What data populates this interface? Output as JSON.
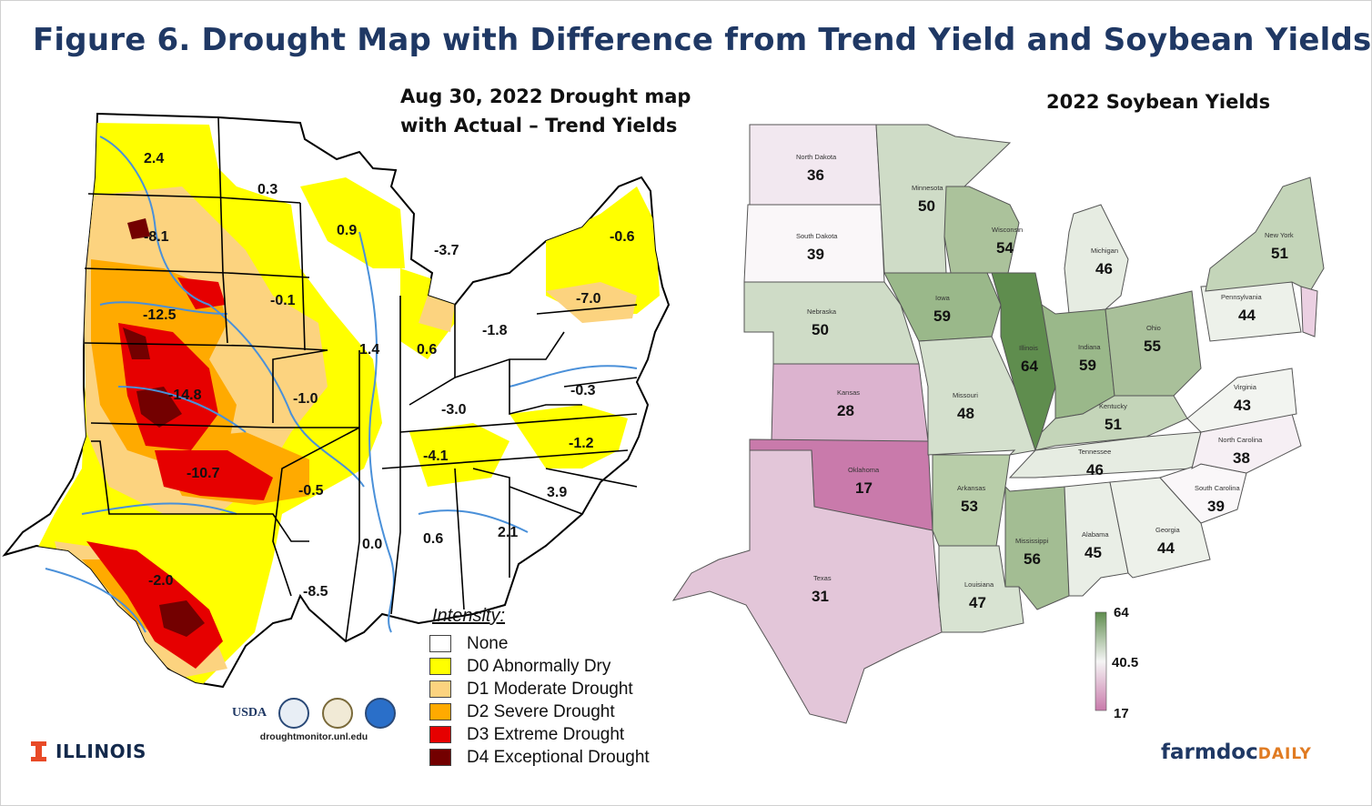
{
  "title": "Figure 6. Drought Map with Difference from Trend Yield and Soybean Yields",
  "left_map": {
    "heading_line1": "Aug 30, 2022 Drought map",
    "heading_line2": "with Actual – Trend Yields",
    "labels": [
      "2.4",
      "0.3",
      "-8.1",
      "0.9",
      "-3.7",
      "-0.6",
      "-12.5",
      "-0.1",
      "-7.0",
      "-1.8",
      "1.4",
      "0.6",
      "-14.8",
      "-1.0",
      "-0.3",
      "-3.0",
      "-1.2",
      "-4.1",
      "-10.7",
      "-0.5",
      "3.9",
      "2.1",
      "0.0",
      "0.6",
      "-2.0",
      "-8.5"
    ],
    "legend": {
      "title": "Intensity:",
      "items": [
        {
          "label": "None",
          "color": "#ffffff"
        },
        {
          "label": "D0 Abnormally Dry",
          "color": "#ffff00"
        },
        {
          "label": "D1 Moderate Drought",
          "color": "#fcd37f"
        },
        {
          "label": "D2 Severe Drought",
          "color": "#ffaa00"
        },
        {
          "label": "D3 Extreme Drought",
          "color": "#e60000"
        },
        {
          "label": "D4 Exceptional Drought",
          "color": "#730000"
        }
      ]
    },
    "sponsors": {
      "usda": "USDA",
      "url": "droughtmonitor.unl.edu",
      "logos": [
        "ndmc-logo",
        "doc-seal-logo",
        "noaa-logo"
      ]
    }
  },
  "right_map": {
    "heading": "2022 Soybean Yields",
    "states": [
      {
        "name": "North Dakota",
        "value": "36"
      },
      {
        "name": "Minnesota",
        "value": "50"
      },
      {
        "name": "South Dakota",
        "value": "39"
      },
      {
        "name": "Wisconsin",
        "value": "54"
      },
      {
        "name": "Michigan",
        "value": "46"
      },
      {
        "name": "New York",
        "value": "51"
      },
      {
        "name": "Iowa",
        "value": "59"
      },
      {
        "name": "Nebraska",
        "value": "50"
      },
      {
        "name": "Pennsylvania",
        "value": "44"
      },
      {
        "name": "Illinois",
        "value": "64"
      },
      {
        "name": "Indiana",
        "value": "59"
      },
      {
        "name": "Ohio",
        "value": "55"
      },
      {
        "name": "Kansas",
        "value": "28"
      },
      {
        "name": "Missouri",
        "value": "48"
      },
      {
        "name": "Kentucky",
        "value": "51"
      },
      {
        "name": "Virginia",
        "value": "43"
      },
      {
        "name": "North Carolina",
        "value": "38"
      },
      {
        "name": "Tennessee",
        "value": "46"
      },
      {
        "name": "Oklahoma",
        "value": "17"
      },
      {
        "name": "Arkansas",
        "value": "53"
      },
      {
        "name": "South Carolina",
        "value": "39"
      },
      {
        "name": "Mississippi",
        "value": "56"
      },
      {
        "name": "Alabama",
        "value": "45"
      },
      {
        "name": "Georgia",
        "value": "44"
      },
      {
        "name": "Texas",
        "value": "31"
      },
      {
        "name": "Louisiana",
        "value": "47"
      }
    ],
    "scale": {
      "max": "64",
      "mid": "40.5",
      "min": "17",
      "color_max": "#5f8d4e",
      "color_mid": "#f5f5f5",
      "color_min": "#c97aab"
    }
  },
  "logos": {
    "illinois": "ILLINOIS",
    "farmdoc_main": "farmdoc",
    "farmdoc_sub": "DAILY"
  }
}
